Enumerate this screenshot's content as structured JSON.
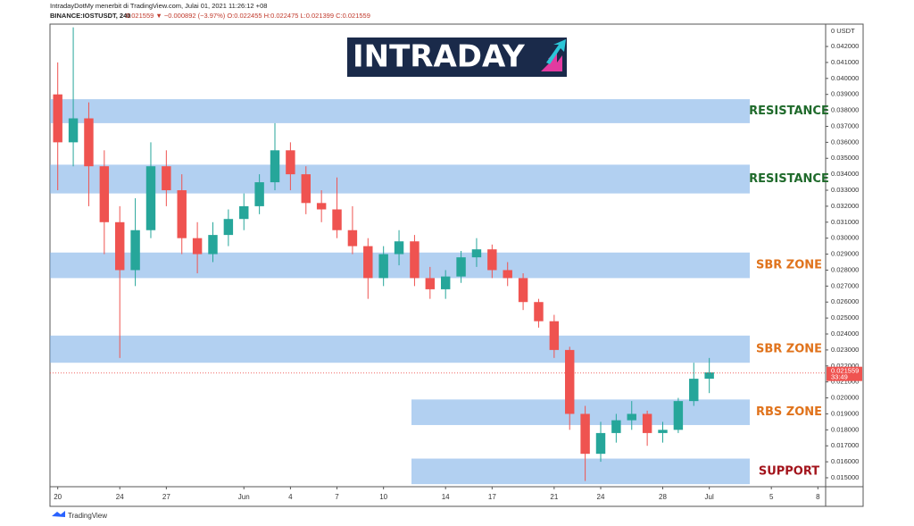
{
  "chart_data": {
    "type": "candlestick",
    "publisher": "IntradayDotMy menerbit di TradingView.com, Julai 01, 2021 11:26:12 +08",
    "symbol": "BINANCE:IOSTUSDT, 240",
    "quote": "0.021559 ▼ −0.000892 (−3.97%) O:0.022455 H:0.022475 L:0.021399 C:0.021559",
    "logo": "INTRADAY",
    "unit": "0 USDT",
    "footer": "TradingView",
    "last_price": {
      "value": 0.021559,
      "label": "0.021559"
    },
    "countdown": "33:49",
    "categories": [
      "20",
      null,
      null,
      null,
      "24",
      null,
      null,
      "27",
      null,
      null,
      null,
      null,
      "Jun",
      null,
      null,
      "4",
      null,
      null,
      "7",
      null,
      null,
      "10",
      null,
      null,
      null,
      "14",
      null,
      null,
      "17",
      null,
      null,
      null,
      "21",
      null,
      null,
      "24",
      null,
      null,
      null,
      "28",
      null,
      null,
      "Jul",
      null,
      null,
      null,
      "5",
      null,
      null,
      "8"
    ],
    "open": [
      0.039,
      0.036,
      0.0375,
      0.0345,
      0.031,
      0.028,
      0.0305,
      0.0345,
      0.033,
      0.03,
      0.029,
      0.0302,
      0.0312,
      0.032,
      0.0335,
      0.0355,
      0.034,
      0.0322,
      0.0318,
      0.0305,
      0.0295,
      0.0275,
      0.029,
      0.0298,
      0.0275,
      0.0268,
      0.0276,
      0.0288,
      0.0293,
      0.028,
      0.0275,
      0.026,
      0.0248,
      0.023,
      0.019,
      0.0165,
      0.0178,
      0.0186,
      0.019,
      0.0178,
      0.018,
      0.0198,
      0.0212,
      null,
      null,
      null,
      null,
      null,
      null,
      null
    ],
    "high": [
      0.041,
      0.0432,
      0.0385,
      0.0355,
      0.032,
      0.0325,
      0.036,
      0.0355,
      0.034,
      0.031,
      0.031,
      0.0318,
      0.0328,
      0.034,
      0.0372,
      0.036,
      0.0345,
      0.033,
      0.0338,
      0.032,
      0.03,
      0.0295,
      0.0305,
      0.0302,
      0.0282,
      0.028,
      0.0292,
      0.03,
      0.0296,
      0.0285,
      0.0278,
      0.0262,
      0.0252,
      0.0232,
      0.0195,
      0.0185,
      0.019,
      0.0198,
      0.0192,
      0.0185,
      0.02,
      0.0222,
      0.0225,
      null,
      null,
      null,
      null,
      null,
      null,
      null
    ],
    "low": [
      0.033,
      0.0345,
      0.032,
      0.029,
      0.0225,
      0.027,
      0.03,
      0.032,
      0.029,
      0.0278,
      0.0285,
      0.0295,
      0.0305,
      0.0315,
      0.033,
      0.033,
      0.0315,
      0.031,
      0.03,
      0.029,
      0.0262,
      0.027,
      0.0283,
      0.027,
      0.0262,
      0.0262,
      0.0272,
      0.0282,
      0.0275,
      0.027,
      0.0255,
      0.0244,
      0.0225,
      0.018,
      0.0148,
      0.016,
      0.0172,
      0.018,
      0.017,
      0.0172,
      0.0178,
      0.0195,
      0.0203,
      null,
      null,
      null,
      null,
      null,
      null,
      null
    ],
    "close": [
      0.036,
      0.0375,
      0.0345,
      0.031,
      0.028,
      0.0305,
      0.0345,
      0.033,
      0.03,
      0.029,
      0.0302,
      0.0312,
      0.032,
      0.0335,
      0.0355,
      0.034,
      0.0322,
      0.0318,
      0.0305,
      0.0295,
      0.0275,
      0.029,
      0.0298,
      0.0275,
      0.0268,
      0.0276,
      0.0288,
      0.0293,
      0.028,
      0.0275,
      0.026,
      0.0248,
      0.023,
      0.019,
      0.0165,
      0.0178,
      0.0186,
      0.019,
      0.0178,
      0.018,
      0.0198,
      0.0212,
      0.0216,
      null,
      null,
      null,
      null,
      null,
      null,
      null
    ],
    "up_color": "#26a69a",
    "down_color": "#ef5350",
    "zones": [
      {
        "label": "RESISTANCE",
        "color": "#1f6a2b",
        "top": 0.0387,
        "bottom": 0.0372
      },
      {
        "label": "RESISTANCE",
        "color": "#1f6a2b",
        "top": 0.0346,
        "bottom": 0.0328
      },
      {
        "label": "SBR ZONE",
        "color": "#e0731c",
        "top": 0.0291,
        "bottom": 0.0275
      },
      {
        "label": "SBR ZONE",
        "color": "#e0731c",
        "top": 0.0239,
        "bottom": 0.0222
      },
      {
        "label": "RBS ZONE",
        "color": "#e0731c",
        "top": 0.0199,
        "bottom": 0.0183
      },
      {
        "label": "SUPPORT",
        "color": "#a3141c",
        "top": 0.0162,
        "bottom": 0.0146
      }
    ],
    "ylim": [
      0.01444,
      0.0434
    ],
    "yticks": [
      {
        "value": 0.042,
        "label": "0.042000"
      },
      {
        "value": 0.041,
        "label": "0.041000"
      },
      {
        "value": 0.04,
        "label": "0.040000"
      },
      {
        "value": 0.039,
        "label": "0.039000"
      },
      {
        "value": 0.038,
        "label": "0.038000"
      },
      {
        "value": 0.037,
        "label": "0.037000"
      },
      {
        "value": 0.036,
        "label": "0.036000"
      },
      {
        "value": 0.035,
        "label": "0.035000"
      },
      {
        "value": 0.034,
        "label": "0.034000"
      },
      {
        "value": 0.033,
        "label": "0.033000"
      },
      {
        "value": 0.032,
        "label": "0.032000"
      },
      {
        "value": 0.031,
        "label": "0.031000"
      },
      {
        "value": 0.03,
        "label": "0.030000"
      },
      {
        "value": 0.029,
        "label": "0.029000"
      },
      {
        "value": 0.028,
        "label": "0.028000"
      },
      {
        "value": 0.027,
        "label": "0.027000"
      },
      {
        "value": 0.026,
        "label": "0.026000"
      },
      {
        "value": 0.025,
        "label": "0.025000"
      },
      {
        "value": 0.024,
        "label": "0.024000"
      },
      {
        "value": 0.023,
        "label": "0.023000"
      },
      {
        "value": 0.022,
        "label": "0.022000"
      },
      {
        "value": 0.021,
        "label": "0.021000"
      },
      {
        "value": 0.02,
        "label": "0.020000"
      },
      {
        "value": 0.019,
        "label": "0.019000"
      },
      {
        "value": 0.018,
        "label": "0.018000"
      },
      {
        "value": 0.017,
        "label": "0.017000"
      },
      {
        "value": 0.016,
        "label": "0.016000"
      },
      {
        "value": 0.015,
        "label": "0.015000"
      }
    ]
  }
}
